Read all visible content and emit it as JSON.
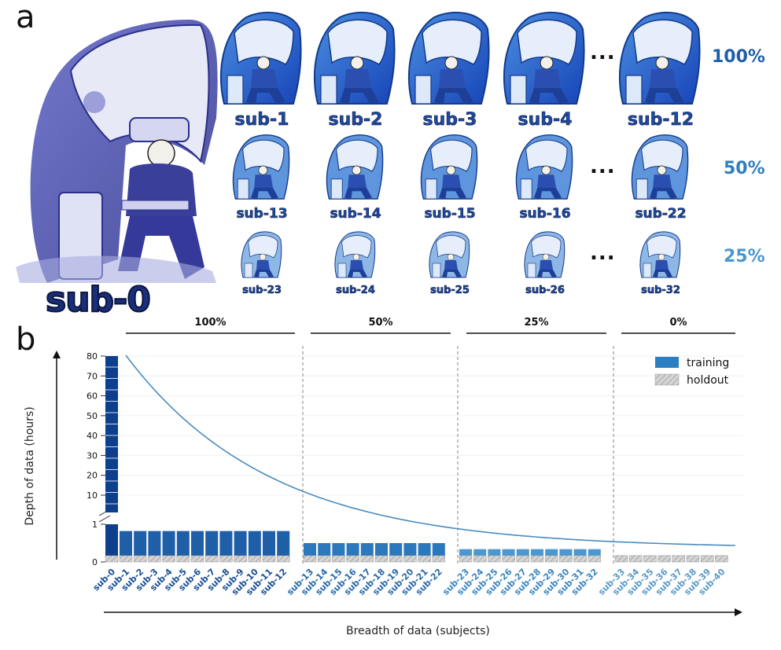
{
  "panel_a": {
    "letter": "a",
    "sub0_label": "sub-0",
    "rows": [
      {
        "pct": "100%",
        "color": "#1f5fa8",
        "labels": [
          "sub-1",
          "sub-2",
          "sub-3",
          "sub-4",
          "sub-12"
        ],
        "dots": "..."
      },
      {
        "pct": "50%",
        "color": "#2f7fc0",
        "labels": [
          "sub-13",
          "sub-14",
          "sub-15",
          "sub-16",
          "sub-22"
        ],
        "dots": "..."
      },
      {
        "pct": "25%",
        "color": "#4a98cf",
        "labels": [
          "sub-23",
          "sub-24",
          "sub-25",
          "sub-26",
          "sub-32"
        ],
        "dots": "..."
      }
    ]
  },
  "panel_b": {
    "letter": "b"
  },
  "chart_data": {
    "type": "bar",
    "xlabel": "Breadth of data (subjects)",
    "ylabel": "Depth of data (hours)",
    "y_upper_ticks": [
      10,
      20,
      30,
      40,
      50,
      60,
      70,
      80
    ],
    "y_lower_ticks": [
      0,
      1
    ],
    "group_labels": [
      "100%",
      "50%",
      "25%",
      "0%"
    ],
    "categories": [
      "sub-0",
      "sub-1",
      "sub-2",
      "sub-3",
      "sub-4",
      "sub-5",
      "sub-6",
      "sub-7",
      "sub-8",
      "sub-9",
      "sub-10",
      "sub-11",
      "sub-12",
      "sub-13",
      "sub-14",
      "sub-15",
      "sub-16",
      "sub-17",
      "sub-18",
      "sub-19",
      "sub-20",
      "sub-21",
      "sub-22",
      "sub-23",
      "sub-24",
      "sub-25",
      "sub-26",
      "sub-27",
      "sub-28",
      "sub-29",
      "sub-30",
      "sub-31",
      "sub-32",
      "sub-33",
      "sub-34",
      "sub-35",
      "sub-36",
      "sub-37",
      "sub-38",
      "sub-39",
      "sub-40"
    ],
    "groups": [
      0,
      1,
      1,
      1,
      1,
      1,
      1,
      1,
      1,
      1,
      1,
      1,
      1,
      2,
      2,
      2,
      2,
      2,
      2,
      2,
      2,
      2,
      2,
      3,
      3,
      3,
      3,
      3,
      3,
      3,
      3,
      3,
      3,
      4,
      4,
      4,
      4,
      4,
      4,
      4,
      4
    ],
    "series": [
      {
        "name": "training",
        "color": "#2e7fc2",
        "values": [
          80,
          0.65,
          0.65,
          0.65,
          0.65,
          0.65,
          0.65,
          0.65,
          0.65,
          0.65,
          0.65,
          0.65,
          0.65,
          0.33,
          0.33,
          0.33,
          0.33,
          0.33,
          0.33,
          0.33,
          0.33,
          0.33,
          0.33,
          0.17,
          0.17,
          0.17,
          0.17,
          0.17,
          0.17,
          0.17,
          0.17,
          0.17,
          0.17,
          0,
          0,
          0,
          0,
          0,
          0,
          0,
          0
        ]
      },
      {
        "name": "holdout",
        "color": "#c0c0c0",
        "values": [
          0.17,
          0.17,
          0.17,
          0.17,
          0.17,
          0.17,
          0.17,
          0.17,
          0.17,
          0.17,
          0.17,
          0.17,
          0.17,
          0.17,
          0.17,
          0.17,
          0.17,
          0.17,
          0.17,
          0.17,
          0.17,
          0.17,
          0.17,
          0.17,
          0.17,
          0.17,
          0.17,
          0.17,
          0.17,
          0.17,
          0.17,
          0.17,
          0.17,
          0.17,
          0.17,
          0.17,
          0.17,
          0.17,
          0.17,
          0.17,
          0.17
        ]
      }
    ],
    "bar_colors": {
      "sub0": "#0d3f8c",
      "g100": "#1f5fa8",
      "g50": "#2b78bd",
      "g25": "#4a98cf"
    },
    "tick_label_colors": {
      "g100": "#1a4f94",
      "g50": "#2b6aa8",
      "g25": "#3b86bf",
      "g0": "#5a9ac8"
    },
    "curve_color": "#4a8cc0",
    "legend": [
      "training",
      "holdout"
    ],
    "legend_position": "top-right",
    "grid": false
  }
}
